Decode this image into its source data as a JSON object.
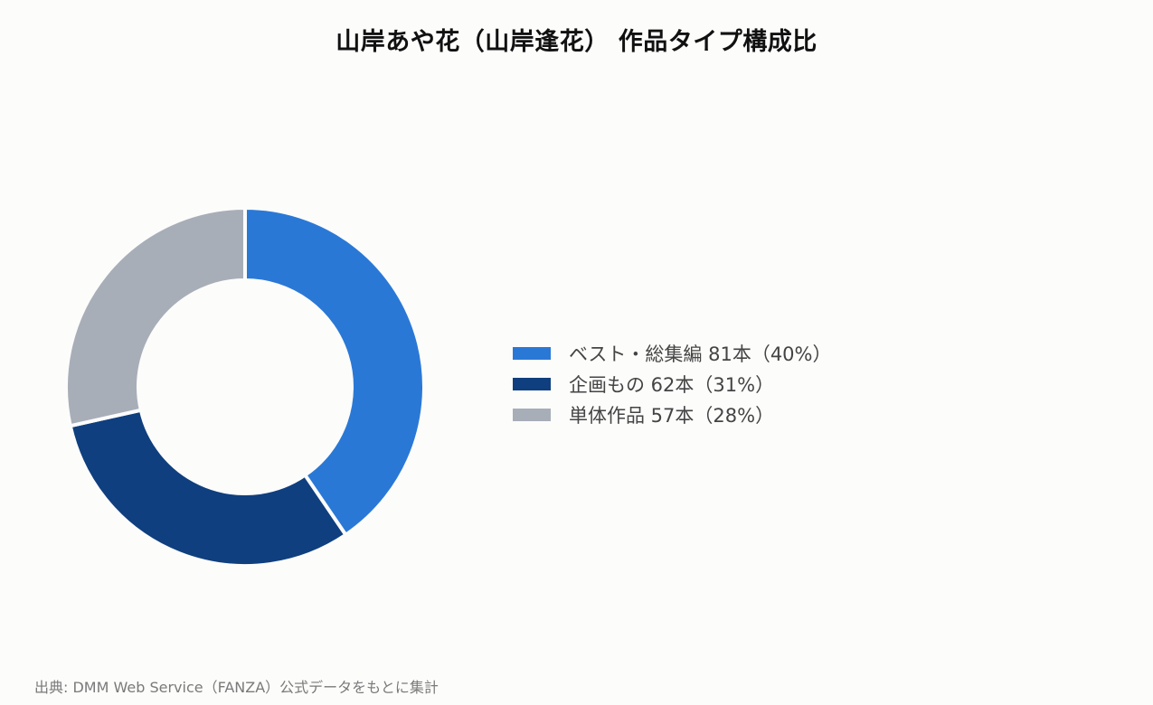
{
  "title": "山岸あや花（山岸逢花） 作品タイプ構成比",
  "source": "出典: DMM Web Service（FANZA）公式データをもとに集計",
  "chart_data": {
    "type": "pie",
    "variant": "donut",
    "title": "山岸あや花（山岸逢花） 作品タイプ構成比",
    "categories": [
      "ベスト・総集編",
      "企画もの",
      "単体作品"
    ],
    "values": [
      81,
      62,
      57
    ],
    "unit": "本",
    "percentages": [
      40,
      31,
      28
    ],
    "colors": [
      "#2a78d6",
      "#0f3f7e",
      "#a8aeb8"
    ],
    "legend_position": "right",
    "legend": [
      {
        "label": "ベスト・総集編 81本（40%）",
        "color": "#2a78d6"
      },
      {
        "label": "企画もの 62本（31%）",
        "color": "#0f3f7e"
      },
      {
        "label": "単体作品 57本（28%）",
        "color": "#a8aeb8"
      }
    ]
  }
}
